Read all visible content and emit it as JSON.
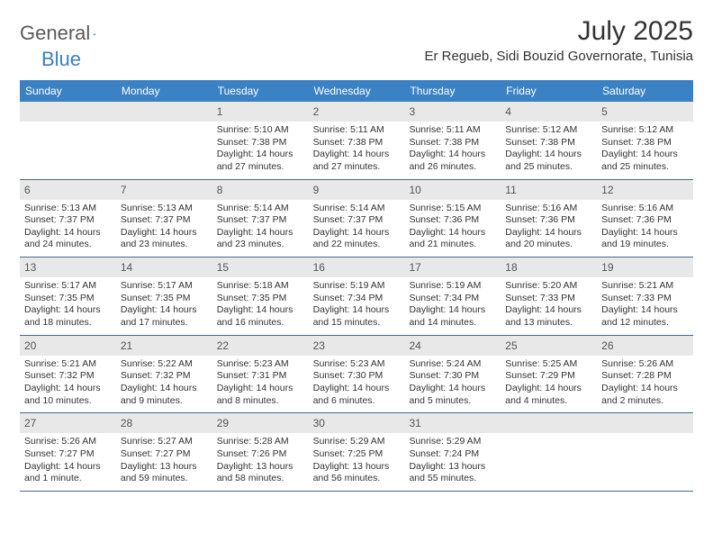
{
  "logo": {
    "word1": "General",
    "word2": "Blue"
  },
  "title": "July 2025",
  "location": "Er Regueb, Sidi Bouzid Governorate, Tunisia",
  "colors": {
    "header_bg": "#3b82c4",
    "header_text": "#ffffff",
    "daynum_bg": "#e8e8e8",
    "border": "#4a6a8a",
    "body_text": "#333333",
    "logo_gray": "#5a5a5a",
    "logo_blue": "#3b7fc4"
  },
  "day_headers": [
    "Sunday",
    "Monday",
    "Tuesday",
    "Wednesday",
    "Thursday",
    "Friday",
    "Saturday"
  ],
  "weeks": [
    [
      null,
      null,
      {
        "n": "1",
        "sr": "5:10 AM",
        "ss": "7:38 PM",
        "dl": "14 hours and 27 minutes."
      },
      {
        "n": "2",
        "sr": "5:11 AM",
        "ss": "7:38 PM",
        "dl": "14 hours and 27 minutes."
      },
      {
        "n": "3",
        "sr": "5:11 AM",
        "ss": "7:38 PM",
        "dl": "14 hours and 26 minutes."
      },
      {
        "n": "4",
        "sr": "5:12 AM",
        "ss": "7:38 PM",
        "dl": "14 hours and 25 minutes."
      },
      {
        "n": "5",
        "sr": "5:12 AM",
        "ss": "7:38 PM",
        "dl": "14 hours and 25 minutes."
      }
    ],
    [
      {
        "n": "6",
        "sr": "5:13 AM",
        "ss": "7:37 PM",
        "dl": "14 hours and 24 minutes."
      },
      {
        "n": "7",
        "sr": "5:13 AM",
        "ss": "7:37 PM",
        "dl": "14 hours and 23 minutes."
      },
      {
        "n": "8",
        "sr": "5:14 AM",
        "ss": "7:37 PM",
        "dl": "14 hours and 23 minutes."
      },
      {
        "n": "9",
        "sr": "5:14 AM",
        "ss": "7:37 PM",
        "dl": "14 hours and 22 minutes."
      },
      {
        "n": "10",
        "sr": "5:15 AM",
        "ss": "7:36 PM",
        "dl": "14 hours and 21 minutes."
      },
      {
        "n": "11",
        "sr": "5:16 AM",
        "ss": "7:36 PM",
        "dl": "14 hours and 20 minutes."
      },
      {
        "n": "12",
        "sr": "5:16 AM",
        "ss": "7:36 PM",
        "dl": "14 hours and 19 minutes."
      }
    ],
    [
      {
        "n": "13",
        "sr": "5:17 AM",
        "ss": "7:35 PM",
        "dl": "14 hours and 18 minutes."
      },
      {
        "n": "14",
        "sr": "5:17 AM",
        "ss": "7:35 PM",
        "dl": "14 hours and 17 minutes."
      },
      {
        "n": "15",
        "sr": "5:18 AM",
        "ss": "7:35 PM",
        "dl": "14 hours and 16 minutes."
      },
      {
        "n": "16",
        "sr": "5:19 AM",
        "ss": "7:34 PM",
        "dl": "14 hours and 15 minutes."
      },
      {
        "n": "17",
        "sr": "5:19 AM",
        "ss": "7:34 PM",
        "dl": "14 hours and 14 minutes."
      },
      {
        "n": "18",
        "sr": "5:20 AM",
        "ss": "7:33 PM",
        "dl": "14 hours and 13 minutes."
      },
      {
        "n": "19",
        "sr": "5:21 AM",
        "ss": "7:33 PM",
        "dl": "14 hours and 12 minutes."
      }
    ],
    [
      {
        "n": "20",
        "sr": "5:21 AM",
        "ss": "7:32 PM",
        "dl": "14 hours and 10 minutes."
      },
      {
        "n": "21",
        "sr": "5:22 AM",
        "ss": "7:32 PM",
        "dl": "14 hours and 9 minutes."
      },
      {
        "n": "22",
        "sr": "5:23 AM",
        "ss": "7:31 PM",
        "dl": "14 hours and 8 minutes."
      },
      {
        "n": "23",
        "sr": "5:23 AM",
        "ss": "7:30 PM",
        "dl": "14 hours and 6 minutes."
      },
      {
        "n": "24",
        "sr": "5:24 AM",
        "ss": "7:30 PM",
        "dl": "14 hours and 5 minutes."
      },
      {
        "n": "25",
        "sr": "5:25 AM",
        "ss": "7:29 PM",
        "dl": "14 hours and 4 minutes."
      },
      {
        "n": "26",
        "sr": "5:26 AM",
        "ss": "7:28 PM",
        "dl": "14 hours and 2 minutes."
      }
    ],
    [
      {
        "n": "27",
        "sr": "5:26 AM",
        "ss": "7:27 PM",
        "dl": "14 hours and 1 minute."
      },
      {
        "n": "28",
        "sr": "5:27 AM",
        "ss": "7:27 PM",
        "dl": "13 hours and 59 minutes."
      },
      {
        "n": "29",
        "sr": "5:28 AM",
        "ss": "7:26 PM",
        "dl": "13 hours and 58 minutes."
      },
      {
        "n": "30",
        "sr": "5:29 AM",
        "ss": "7:25 PM",
        "dl": "13 hours and 56 minutes."
      },
      {
        "n": "31",
        "sr": "5:29 AM",
        "ss": "7:24 PM",
        "dl": "13 hours and 55 minutes."
      },
      null,
      null
    ]
  ],
  "labels": {
    "sunrise": "Sunrise: ",
    "sunset": "Sunset: ",
    "daylight": "Daylight: "
  }
}
